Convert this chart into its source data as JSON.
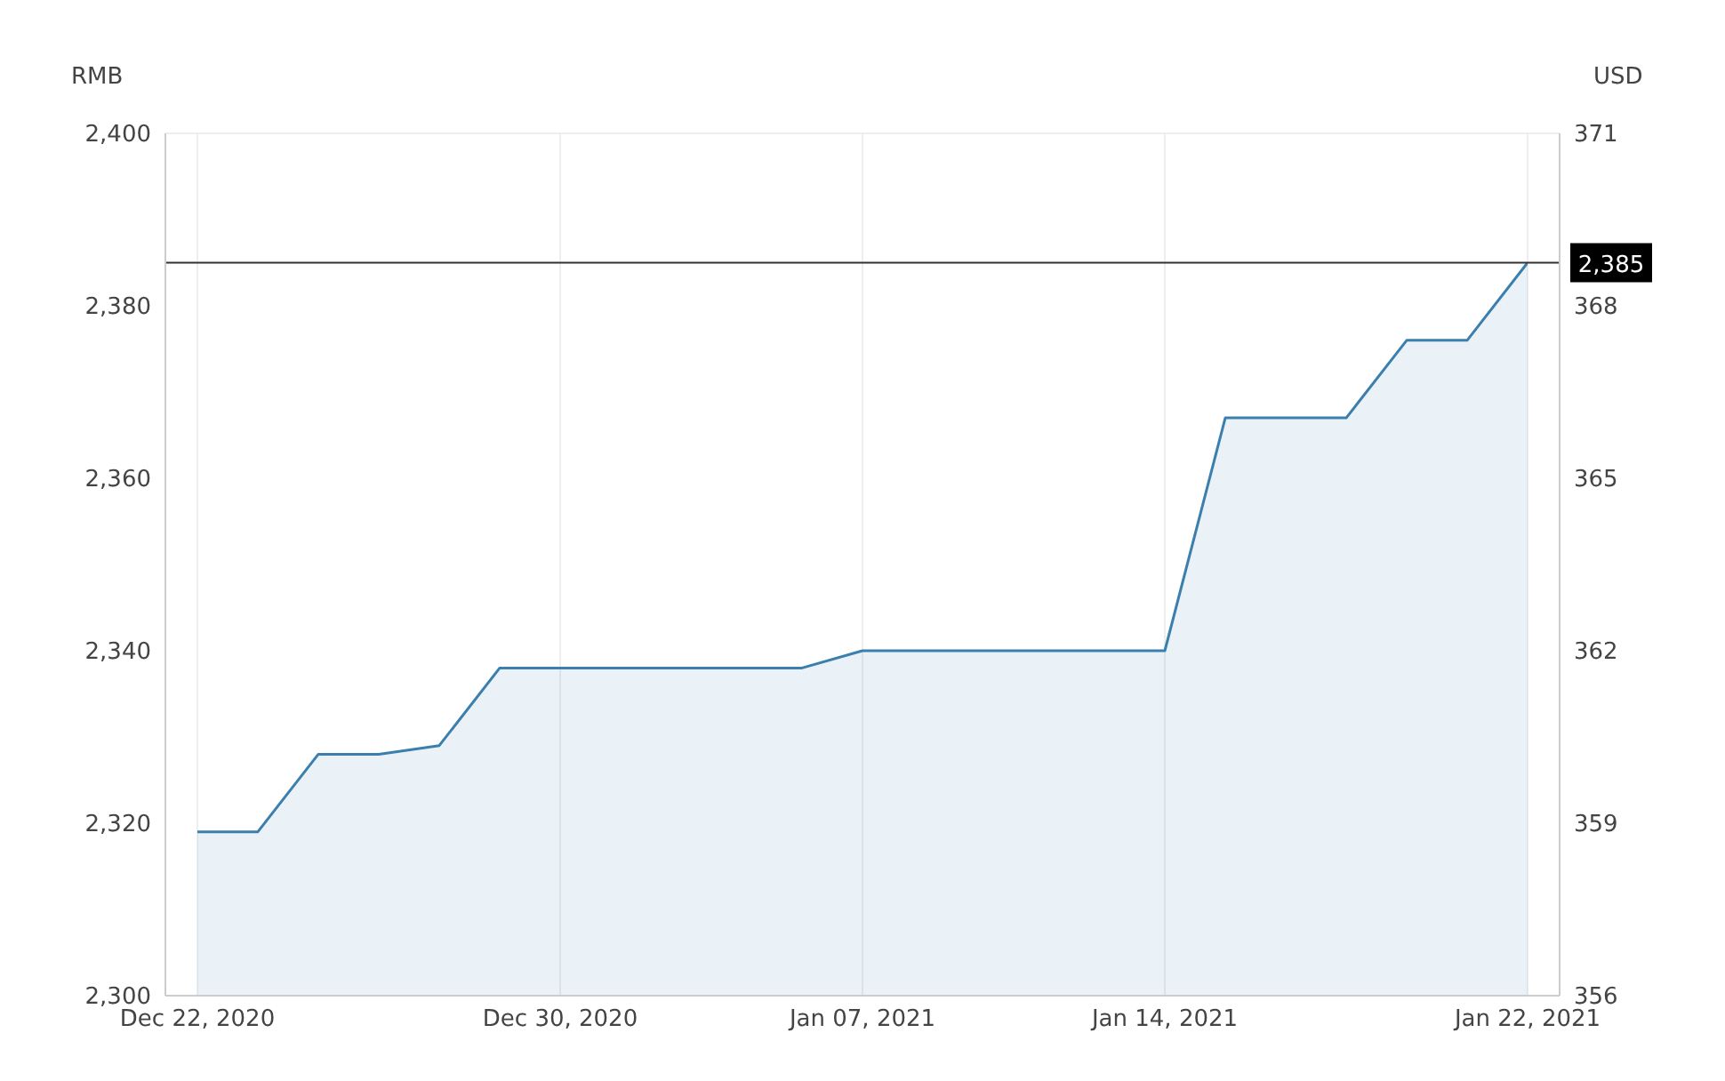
{
  "chart_data": {
    "type": "area",
    "ylabel": "RMB",
    "y2label": "USD",
    "categories": [
      "Dec 22, 2020",
      null,
      null,
      null,
      null,
      null,
      "Dec 30, 2020",
      null,
      null,
      null,
      null,
      "Jan 07, 2021",
      null,
      null,
      null,
      null,
      "Jan 14, 2021",
      null,
      null,
      null,
      null,
      null,
      "Jan 22, 2021"
    ],
    "series": [
      {
        "color": "#3a7fad",
        "values": [
          2319,
          2319,
          2328,
          2328,
          2329,
          2338,
          2338,
          2338,
          2338,
          2338,
          2338,
          2340,
          2340,
          2340,
          2340,
          2340,
          2340,
          2367,
          2367,
          2367,
          2376,
          2376,
          2385
        ]
      }
    ],
    "ylim": [
      2300,
      2400
    ],
    "yticks": [
      {
        "value": 2300,
        "label": "2,300"
      },
      {
        "value": 2320,
        "label": "2,320"
      },
      {
        "value": 2340,
        "label": "2,340"
      },
      {
        "value": 2360,
        "label": "2,360"
      },
      {
        "value": 2380,
        "label": "2,380"
      },
      {
        "value": 2400,
        "label": "2,400"
      }
    ],
    "y2lim": [
      356,
      371
    ],
    "y2ticks": [
      356,
      359,
      362,
      365,
      368,
      371
    ],
    "ref_lines": [
      {
        "axis": "y",
        "value": 2385,
        "label": "2,385",
        "color": "#333333"
      }
    ],
    "grid": true,
    "marker": "none"
  }
}
